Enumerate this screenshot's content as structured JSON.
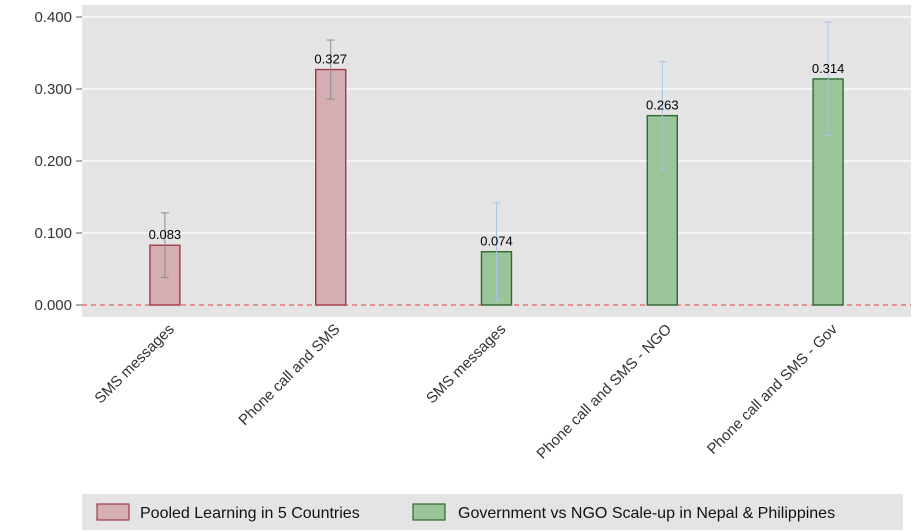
{
  "chart_data": {
    "type": "bar",
    "categories": [
      "SMS messages",
      "Phone call and SMS",
      "SMS messages",
      "Phone call and SMS - NGO",
      "Phone call and SMS - Gov"
    ],
    "values": [
      0.083,
      0.327,
      0.074,
      0.263,
      0.314
    ],
    "value_labels": [
      "0.083",
      "0.327",
      "0.074",
      "0.263",
      "0.314"
    ],
    "ci_low": [
      0.038,
      0.286,
      0.006,
      0.188,
      0.235
    ],
    "ci_high": [
      0.128,
      0.368,
      0.142,
      0.338,
      0.393
    ],
    "group": [
      0,
      0,
      1,
      1,
      1
    ],
    "groups": [
      {
        "name": "Pooled Learning in 5 Countries",
        "fill": "#d4aeb2",
        "stroke": "#a23a44",
        "errcolor": "#8c8c8c"
      },
      {
        "name": "Government vs NGO Scale-up in Nepal & Philippines",
        "fill": "#9cc49a",
        "stroke": "#2e6a2c",
        "errcolor": "#aac4e2"
      }
    ],
    "yticks": [
      "0.000",
      "0.100",
      "0.200",
      "0.300",
      "0.400"
    ],
    "ylim": [
      0,
      0.418
    ],
    "reference_line": {
      "y": 0,
      "color": "#e06060",
      "style": "dashed"
    },
    "grid": true,
    "legend_position": "bottom",
    "title": "",
    "xlabel": "",
    "ylabel": ""
  }
}
